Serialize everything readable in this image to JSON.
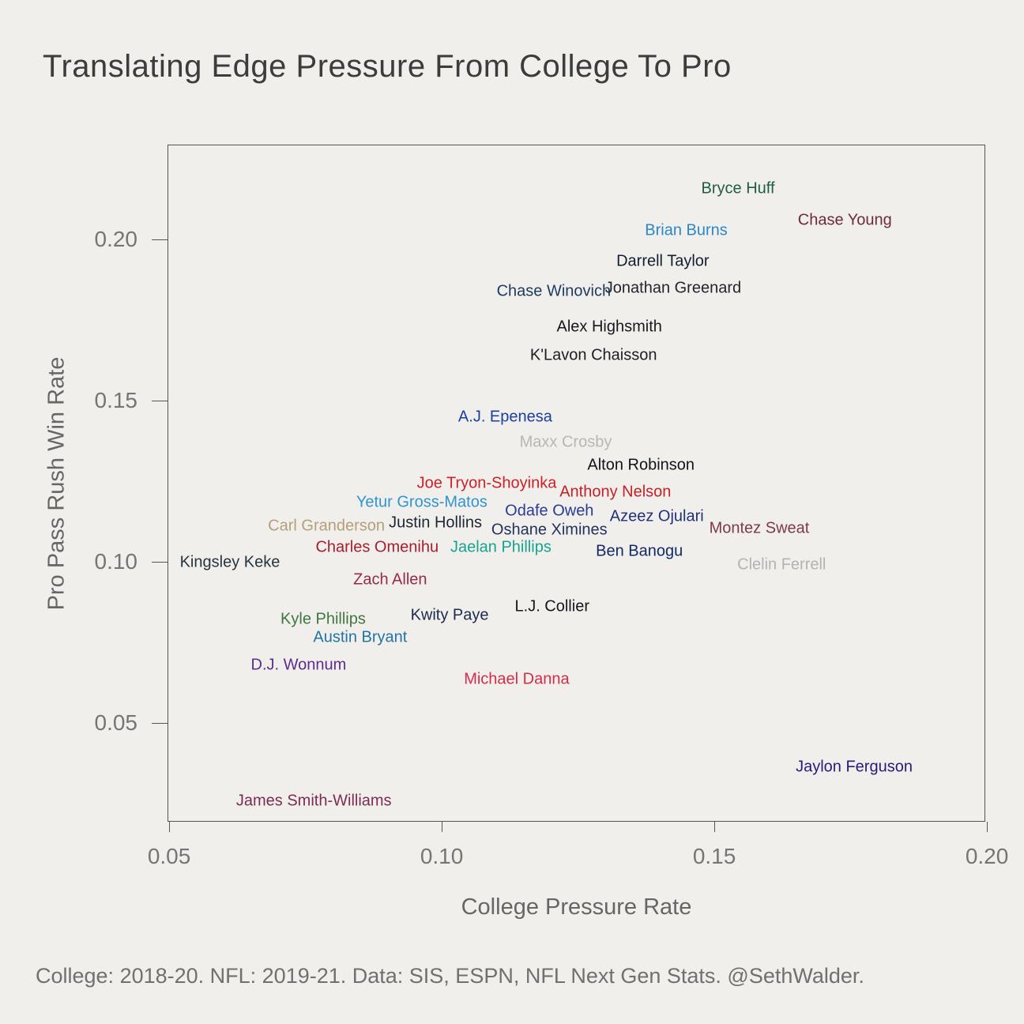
{
  "title": "Translating Edge Pressure From College To Pro",
  "caption": "College: 2018-20. NFL: 2019-21. Data: SIS, ESPN, NFL Next Gen Stats. @SethWalder.",
  "chart_data": {
    "type": "scatter",
    "title": "Translating Edge Pressure From College To Pro",
    "xlabel": "College Pressure Rate",
    "ylabel": "Pro Pass Rush Win Rate",
    "xlim": [
      0.0497,
      0.1997
    ],
    "ylim": [
      0.0194,
      0.2294
    ],
    "x_ticks": [
      0.05,
      0.1,
      0.15,
      0.2
    ],
    "y_ticks": [
      0.05,
      0.1,
      0.15,
      0.2
    ],
    "grid": false,
    "legend": "none",
    "marker_style": "text-label",
    "points": [
      {
        "label": "Bryce Huff",
        "x": 0.1542,
        "y": 0.216,
        "color": "#1f5c48"
      },
      {
        "label": "Chase Young",
        "x": 0.1738,
        "y": 0.206,
        "color": "#6e2a3e"
      },
      {
        "label": "Brian Burns",
        "x": 0.1447,
        "y": 0.2029,
        "color": "#2b87c8"
      },
      {
        "label": "Darrell Taylor",
        "x": 0.1404,
        "y": 0.1934,
        "color": "#121f31"
      },
      {
        "label": "Chase Winovich",
        "x": 0.1204,
        "y": 0.1841,
        "color": "#1d3a5f"
      },
      {
        "label": "Jonathan Greenard",
        "x": 0.1423,
        "y": 0.1851,
        "color": "#24242e"
      },
      {
        "label": "Alex Highsmith",
        "x": 0.1306,
        "y": 0.1731,
        "color": "#17181c"
      },
      {
        "label": "K'Lavon Chaisson",
        "x": 0.1277,
        "y": 0.1642,
        "color": "#1d1e22"
      },
      {
        "label": "A.J. Epenesa",
        "x": 0.1115,
        "y": 0.1451,
        "color": "#1b3fa0"
      },
      {
        "label": "Maxx Crosby",
        "x": 0.1226,
        "y": 0.1373,
        "color": "#b7b7b7"
      },
      {
        "label": "Alton Robinson",
        "x": 0.1364,
        "y": 0.1301,
        "color": "#121418"
      },
      {
        "label": "Joe Tryon-Shoyinka",
        "x": 0.1081,
        "y": 0.1245,
        "color": "#cf2027"
      },
      {
        "label": "Anthony Nelson",
        "x": 0.1317,
        "y": 0.1218,
        "color": "#c52026"
      },
      {
        "label": "Yetur Gross-Matos",
        "x": 0.0962,
        "y": 0.1186,
        "color": "#2f95d0"
      },
      {
        "label": "Odafe Oweh",
        "x": 0.1196,
        "y": 0.1159,
        "color": "#2b3a93"
      },
      {
        "label": "Azeez Ojulari",
        "x": 0.1393,
        "y": 0.1142,
        "color": "#23307a"
      },
      {
        "label": "Carl Granderson",
        "x": 0.0787,
        "y": 0.1113,
        "color": "#b3a079"
      },
      {
        "label": "Justin Hollins",
        "x": 0.0987,
        "y": 0.1123,
        "color": "#1e2633"
      },
      {
        "label": "Oshane Ximines",
        "x": 0.1196,
        "y": 0.11,
        "color": "#22325c"
      },
      {
        "label": "Montez Sweat",
        "x": 0.1581,
        "y": 0.1105,
        "color": "#7d3a4c"
      },
      {
        "label": "Charles Omenihu",
        "x": 0.088,
        "y": 0.1047,
        "color": "#a81e2e"
      },
      {
        "label": "Jaelan Phillips",
        "x": 0.1107,
        "y": 0.1047,
        "color": "#18a38e"
      },
      {
        "label": "Ben Banogu",
        "x": 0.1361,
        "y": 0.1034,
        "color": "#132a66"
      },
      {
        "label": "Clelin Ferrell",
        "x": 0.1622,
        "y": 0.0993,
        "color": "#b3b3b3"
      },
      {
        "label": "Kingsley Keke",
        "x": 0.061,
        "y": 0.1,
        "color": "#27353d"
      },
      {
        "label": "Zach Allen",
        "x": 0.0904,
        "y": 0.0946,
        "color": "#992948"
      },
      {
        "label": "Kyle Phillips",
        "x": 0.0781,
        "y": 0.0824,
        "color": "#41773f"
      },
      {
        "label": "Kwity Paye",
        "x": 0.1013,
        "y": 0.0836,
        "color": "#1d2b4e"
      },
      {
        "label": "L.J. Collier",
        "x": 0.1201,
        "y": 0.0863,
        "color": "#15171c"
      },
      {
        "label": "Austin Bryant",
        "x": 0.0849,
        "y": 0.0767,
        "color": "#2374a6"
      },
      {
        "label": "D.J. Wonnum",
        "x": 0.0736,
        "y": 0.0681,
        "color": "#5c2d8e"
      },
      {
        "label": "Michael Danna",
        "x": 0.1136,
        "y": 0.0637,
        "color": "#d62b4a"
      },
      {
        "label": "Jaylon Ferguson",
        "x": 0.1755,
        "y": 0.0365,
        "color": "#2b1a78"
      },
      {
        "label": "James Smith-Williams",
        "x": 0.0764,
        "y": 0.026,
        "color": "#7d2c50"
      }
    ]
  }
}
